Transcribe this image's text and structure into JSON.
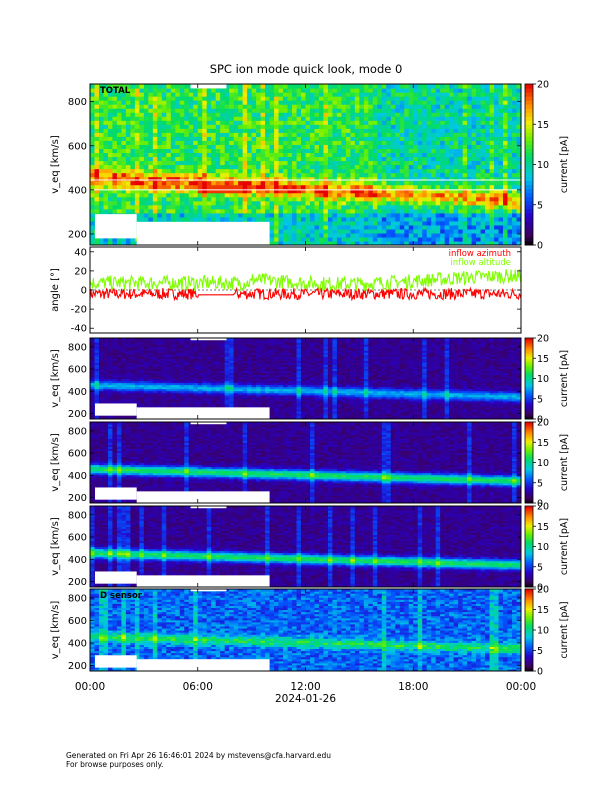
{
  "chart_data": {
    "type": "heatmap",
    "title": "SPC ion mode quick look, mode 0",
    "xlabel": "2024-01-26",
    "x_ticks": [
      "00:00",
      "06:00",
      "12:00",
      "18:00",
      "00:00"
    ],
    "x_range_hours": [
      0,
      24
    ],
    "panels": [
      {
        "type": "heatmap",
        "label": "TOTAL",
        "ylabel": "v_eq [km/s]",
        "yticks": [
          200,
          400,
          600,
          800
        ],
        "ylim": [
          150,
          880
        ],
        "colorbar_label": "current [pA]",
        "colorbar_ticks": [
          0,
          5,
          10,
          15,
          20
        ],
        "clim": [
          0,
          20
        ],
        "colormap": "rainbow"
      },
      {
        "type": "line",
        "ylabel": "angle [°]",
        "yticks": [
          -40,
          -20,
          0,
          20,
          40
        ],
        "ylim": [
          -45,
          45
        ],
        "series": [
          {
            "name": "inflow azimuth",
            "color": "#ff0000",
            "typical_range": [
              -10,
              2
            ]
          },
          {
            "name": "inflow altitude",
            "color": "#7fff00",
            "typical_range": [
              0,
              15
            ]
          }
        ]
      },
      {
        "type": "heatmap",
        "label": "",
        "ylabel": "v_eq [km/s]",
        "yticks": [
          200,
          400,
          600,
          800
        ],
        "ylim": [
          150,
          880
        ],
        "colorbar_label": "current [pA]",
        "colorbar_ticks": [
          0,
          5,
          10,
          15,
          20
        ],
        "clim": [
          0,
          20
        ],
        "colormap": "rainbow"
      },
      {
        "type": "heatmap",
        "label": "",
        "ylabel": "v_eq [km/s]",
        "yticks": [
          200,
          400,
          600,
          800
        ],
        "ylim": [
          150,
          880
        ],
        "colorbar_label": "current [pA]",
        "colorbar_ticks": [
          0,
          5,
          10,
          15,
          20
        ],
        "clim": [
          0,
          20
        ],
        "colormap": "rainbow"
      },
      {
        "type": "heatmap",
        "label": "",
        "ylabel": "v_eq [km/s]",
        "yticks": [
          200,
          400,
          600,
          800
        ],
        "ylim": [
          150,
          880
        ],
        "colorbar_label": "current [pA]",
        "colorbar_ticks": [
          0,
          5,
          10,
          15,
          20
        ],
        "clim": [
          0,
          20
        ],
        "colormap": "rainbow"
      },
      {
        "type": "heatmap",
        "label": "D sensor",
        "ylabel": "v_eq [km/s]",
        "yticks": [
          200,
          400,
          600,
          800
        ],
        "ylim": [
          150,
          880
        ],
        "colorbar_label": "current [pA]",
        "colorbar_ticks": [
          0,
          5,
          10,
          15,
          20
        ],
        "clim": [
          0,
          20
        ],
        "colormap": "rainbow"
      }
    ]
  },
  "footer": {
    "line1": "Generated on Fri Apr 26 16:46:01 2024 by mstevens@cfa.harvard.edu",
    "line2": "For browse purposes only."
  }
}
